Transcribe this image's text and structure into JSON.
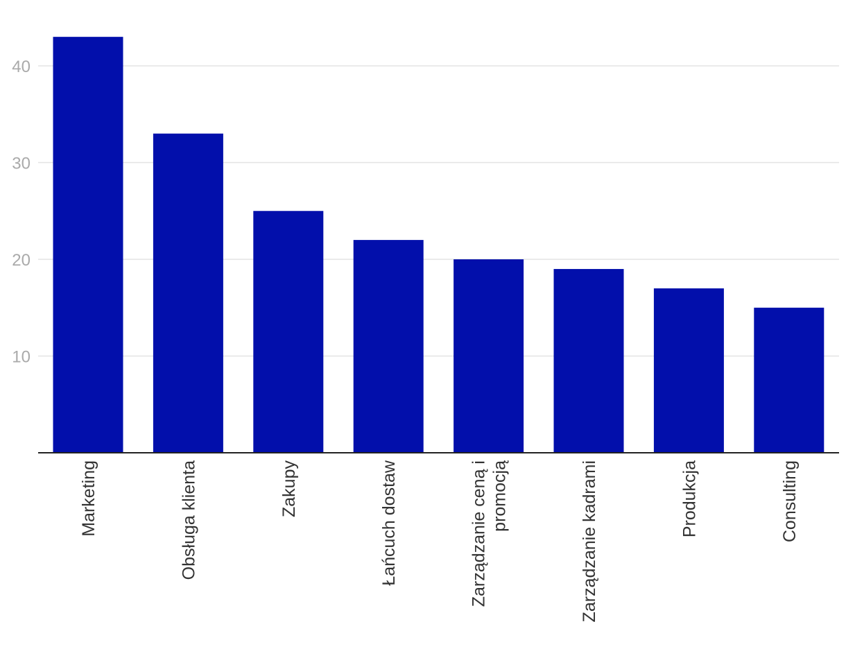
{
  "chart_data": {
    "type": "bar",
    "categories": [
      "Marketing",
      "Obsługa klienta",
      "Zakupy",
      "Łańcuch dostaw",
      "Zarządzanie ceną i promocją",
      "Zarządzanie kadrami",
      "Produkcja",
      "Consulting"
    ],
    "category_lines": [
      [
        "Marketing"
      ],
      [
        "Obsługa klienta"
      ],
      [
        "Zakupy"
      ],
      [
        "Łańcuch dostaw"
      ],
      [
        "Zarządzanie ceną i",
        "promocją"
      ],
      [
        "Zarządzanie kadrami"
      ],
      [
        "Produkcja"
      ],
      [
        "Consulting"
      ]
    ],
    "values": [
      43,
      33,
      25,
      22,
      20,
      19,
      17,
      15
    ],
    "yticks": [
      "10",
      "20",
      "30",
      "40"
    ],
    "ylim": [
      0,
      43
    ],
    "grid": true,
    "bar_color": "#020fab",
    "grid_color": "#e3e3e3",
    "tick_label_color": "#aaaaaa",
    "category_label_color": "#333333",
    "axis_color": "#222222",
    "title": "",
    "xlabel": "",
    "ylabel": ""
  }
}
